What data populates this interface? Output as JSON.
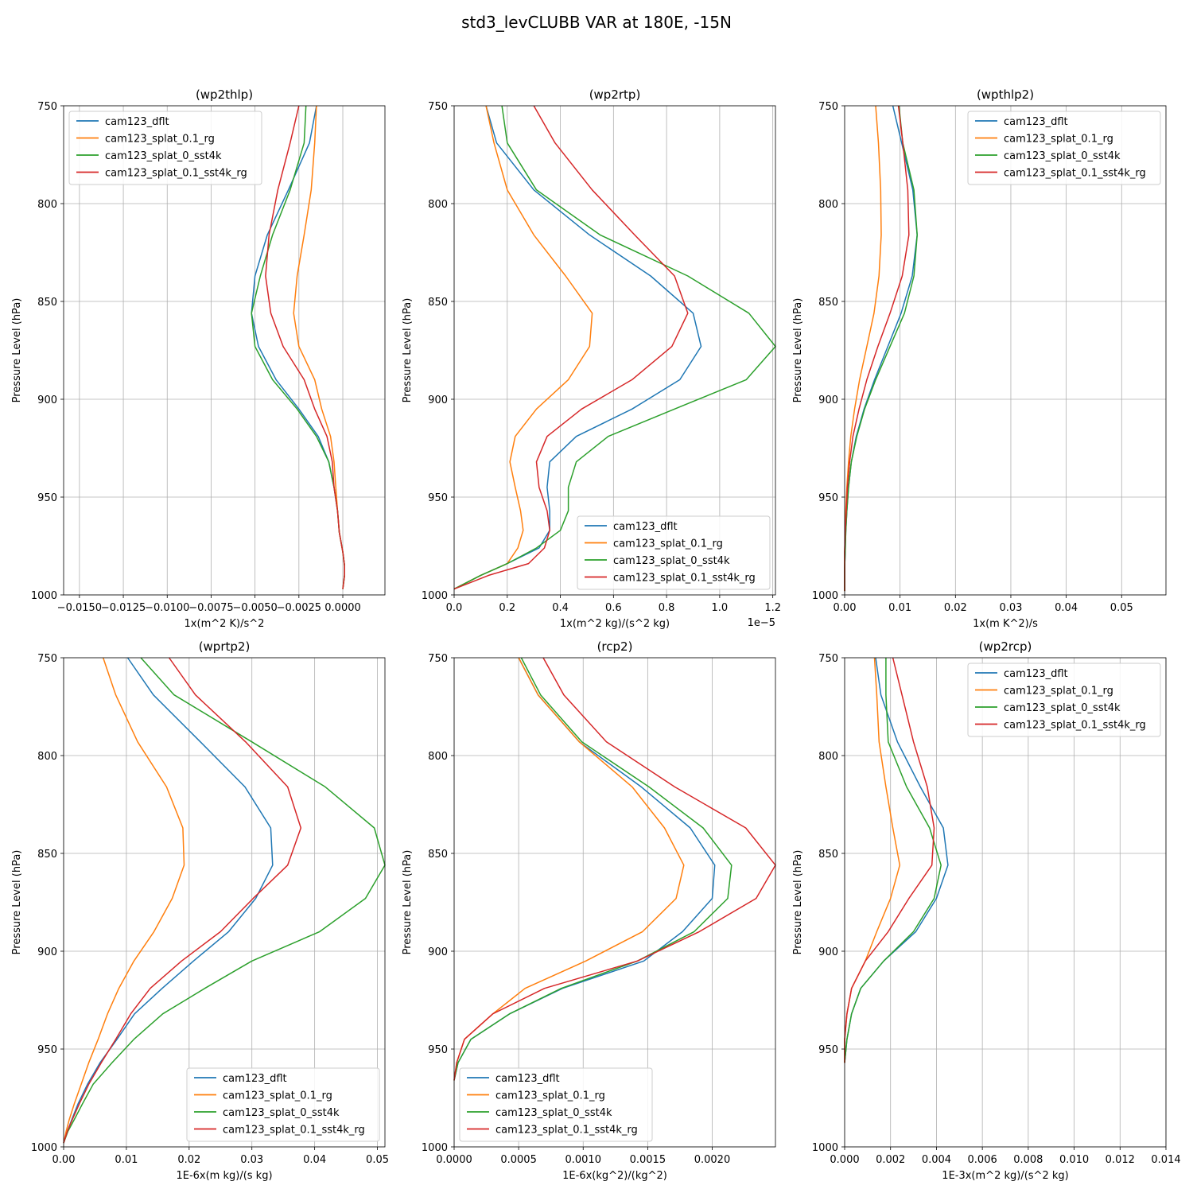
{
  "figure_title": "std3_levCLUBB VAR at 180E, -15N",
  "colors": {
    "cam123_dflt": "#1f77b4",
    "cam123_splat_0.1_rg": "#ff7f0e",
    "cam123_splat_0_sst4k": "#2ca02c",
    "cam123_splat_0.1_sst4k_rg": "#d62728"
  },
  "chart_data": [
    {
      "type": "line",
      "title": "(wp2thlp)",
      "xlabel": "1x(m^2 K)/s^2",
      "ylabel": "Pressure Level (hPa)",
      "xlim": [
        -0.0159,
        0.0024
      ],
      "ylim": [
        1000,
        750
      ],
      "xticks": [
        -0.015,
        -0.0125,
        -0.01,
        -0.0075,
        -0.005,
        -0.0025,
        0.0
      ],
      "xtick_labels": [
        "−0.0150",
        "−0.0125",
        "−0.0100",
        "−0.0075",
        "−0.0050",
        "−0.0025",
        "0.0000"
      ],
      "yticks": [
        750,
        800,
        850,
        900,
        950,
        1000
      ],
      "ytick_labels": [
        "750",
        "800",
        "850",
        "900",
        "950",
        "1000"
      ],
      "offset_label": "",
      "grid": true,
      "legend_loc": "upper-left",
      "y": [
        750,
        769,
        793,
        816,
        837,
        856,
        873,
        890,
        905,
        919,
        932,
        945,
        957,
        968,
        978,
        985,
        990,
        997
      ],
      "series": [
        {
          "name": "cam123_dflt",
          "values": [
            -0.0015,
            -0.0019,
            -0.0031,
            -0.0043,
            -0.005,
            -0.0052,
            -0.0048,
            -0.0038,
            -0.0025,
            -0.0014,
            -0.0008,
            -0.0005,
            -0.0003,
            -0.0002,
            0.0,
            0.0001,
            0.0001,
            0.0
          ]
        },
        {
          "name": "cam123_splat_0.1_rg",
          "values": [
            -0.0015,
            -0.0016,
            -0.0018,
            -0.0022,
            -0.0026,
            -0.0028,
            -0.0025,
            -0.0016,
            -0.0012,
            -0.0007,
            -0.0005,
            -0.0004,
            -0.0003,
            -0.0002,
            0.0,
            0.0001,
            0.0001,
            0.0
          ]
        },
        {
          "name": "cam123_splat_0_sst4k",
          "values": [
            -0.0021,
            -0.0022,
            -0.003,
            -0.004,
            -0.0047,
            -0.0052,
            -0.005,
            -0.004,
            -0.0026,
            -0.0015,
            -0.0008,
            -0.0005,
            -0.0003,
            -0.0002,
            0.0,
            0.0001,
            0.0001,
            0.0
          ]
        },
        {
          "name": "cam123_splat_0.1_sst4k_rg",
          "values": [
            -0.0025,
            -0.003,
            -0.0037,
            -0.0042,
            -0.0044,
            -0.0041,
            -0.0034,
            -0.0022,
            -0.0016,
            -0.0009,
            -0.0006,
            -0.0005,
            -0.0003,
            -0.0002,
            0.0,
            0.0001,
            0.0001,
            0.0
          ]
        }
      ]
    },
    {
      "type": "line",
      "title": "(wp2rtp)",
      "xlabel": "1x(m^2 kg)/(s^2 kg)",
      "ylabel": "Pressure Level (hPa)",
      "xlim": [
        0,
        1.21e-05
      ],
      "ylim": [
        1000,
        750
      ],
      "xticks": [
        0,
        2e-06,
        4e-06,
        6e-06,
        8e-06,
        1e-05,
        1.2e-05
      ],
      "xtick_labels": [
        "0.0",
        "0.2",
        "0.4",
        "0.6",
        "0.8",
        "1.0",
        "1.2"
      ],
      "yticks": [
        750,
        800,
        850,
        900,
        950,
        1000
      ],
      "ytick_labels": [
        "750",
        "800",
        "850",
        "900",
        "950",
        "1000"
      ],
      "offset_label": "1e−5",
      "grid": true,
      "legend_loc": "lower-right",
      "y": [
        750,
        769,
        793,
        816,
        837,
        856,
        873,
        890,
        905,
        919,
        932,
        945,
        957,
        967,
        976,
        984,
        990,
        997
      ],
      "series": [
        {
          "name": "cam123_dflt",
          "values": [
            1.2e-06,
            1.6e-06,
            3e-06,
            5.1e-06,
            7.4e-06,
            9e-06,
            9.3e-06,
            8.5e-06,
            6.7e-06,
            4.6e-06,
            3.6e-06,
            3.5e-06,
            3.6e-06,
            3.6e-06,
            3.2e-06,
            2e-06,
            1e-06,
            0.0
          ]
        },
        {
          "name": "cam123_splat_0.1_rg",
          "values": [
            1.2e-06,
            1.5e-06,
            2e-06,
            3e-06,
            4.2e-06,
            5.2e-06,
            5.1e-06,
            4.3e-06,
            3.1e-06,
            2.3e-06,
            2.1e-06,
            2.3e-06,
            2.5e-06,
            2.6e-06,
            2.4e-06,
            2e-06,
            1e-06,
            0.0
          ]
        },
        {
          "name": "cam123_splat_0_sst4k",
          "values": [
            1.8e-06,
            2e-06,
            3.1e-06,
            5.5e-06,
            8.8e-06,
            1.11e-05,
            1.21e-05,
            1.1e-05,
            8.3e-06,
            5.8e-06,
            4.6e-06,
            4.3e-06,
            4.3e-06,
            4e-06,
            3.1e-06,
            2e-06,
            1e-06,
            0.0
          ]
        },
        {
          "name": "cam123_splat_0.1_sst4k_rg",
          "values": [
            3e-06,
            3.8e-06,
            5.2e-06,
            6.8e-06,
            8.3e-06,
            8.8e-06,
            8.2e-06,
            6.7e-06,
            4.8e-06,
            3.5e-06,
            3.1e-06,
            3.2e-06,
            3.5e-06,
            3.6e-06,
            3.4e-06,
            2.8e-06,
            1.3e-06,
            0.0
          ]
        }
      ]
    },
    {
      "type": "line",
      "title": "(wpthlp2)",
      "xlabel": "1x(m K^2)/s",
      "ylabel": "Pressure Level (hPa)",
      "xlim": [
        0,
        0.058
      ],
      "ylim": [
        1000,
        750
      ],
      "xticks": [
        0,
        0.01,
        0.02,
        0.03,
        0.04,
        0.05
      ],
      "xtick_labels": [
        "0.00",
        "0.01",
        "0.02",
        "0.03",
        "0.04",
        "0.05"
      ],
      "yticks": [
        750,
        800,
        850,
        900,
        950,
        1000
      ],
      "ytick_labels": [
        "750",
        "800",
        "850",
        "900",
        "950",
        "1000"
      ],
      "offset_label": "",
      "grid": true,
      "legend_loc": "upper-right",
      "y": [
        750,
        769,
        793,
        816,
        837,
        856,
        873,
        890,
        905,
        919,
        932,
        945,
        957,
        968,
        978,
        986,
        992,
        998
      ],
      "series": [
        {
          "name": "cam123_dflt",
          "values": [
            0.0087,
            0.0103,
            0.0123,
            0.0131,
            0.0122,
            0.0102,
            0.0078,
            0.0054,
            0.0035,
            0.0021,
            0.0012,
            0.0007,
            0.0004,
            0.0002,
            0.0001,
            0.0,
            0.0,
            0.0
          ]
        },
        {
          "name": "cam123_splat_0.1_rg",
          "values": [
            0.0056,
            0.0061,
            0.0065,
            0.0066,
            0.0062,
            0.0053,
            0.004,
            0.0027,
            0.0018,
            0.0011,
            0.0007,
            0.0004,
            0.0002,
            0.0001,
            0.0,
            0.0,
            0.0,
            0.0
          ]
        },
        {
          "name": "cam123_splat_0_sst4k",
          "values": [
            0.0098,
            0.0105,
            0.0125,
            0.0131,
            0.0125,
            0.0108,
            0.0082,
            0.0056,
            0.0036,
            0.0022,
            0.0012,
            0.0007,
            0.0004,
            0.0002,
            0.0001,
            0.0,
            0.0,
            0.0
          ]
        },
        {
          "name": "cam123_splat_0.1_sst4k_rg",
          "values": [
            0.0097,
            0.0105,
            0.0114,
            0.0116,
            0.0104,
            0.0082,
            0.006,
            0.004,
            0.0026,
            0.0015,
            0.0009,
            0.0005,
            0.0003,
            0.0001,
            0.0,
            0.0,
            0.0,
            0.0
          ]
        }
      ]
    },
    {
      "type": "line",
      "title": "(wprtp2)",
      "xlabel": "1E-6x(m kg)/(s kg)",
      "ylabel": "Pressure Level (hPa)",
      "xlim": [
        0,
        0.0512
      ],
      "ylim": [
        1000,
        750
      ],
      "xticks": [
        0,
        0.01,
        0.02,
        0.03,
        0.04,
        0.05
      ],
      "xtick_labels": [
        "0.00",
        "0.01",
        "0.02",
        "0.03",
        "0.04",
        "0.05"
      ],
      "yticks": [
        750,
        800,
        850,
        900,
        950,
        1000
      ],
      "ytick_labels": [
        "750",
        "800",
        "850",
        "900",
        "950",
        "1000"
      ],
      "offset_label": "",
      "grid": true,
      "legend_loc": "lower-right",
      "y": [
        750,
        769,
        793,
        816,
        837,
        856,
        873,
        890,
        905,
        919,
        932,
        945,
        957,
        968,
        978,
        986,
        992,
        998
      ],
      "series": [
        {
          "name": "cam123_dflt",
          "values": [
            0.0102,
            0.0143,
            0.0218,
            0.0289,
            0.033,
            0.0333,
            0.0306,
            0.0263,
            0.0207,
            0.0157,
            0.0113,
            0.0085,
            0.0058,
            0.0038,
            0.0023,
            0.0013,
            0.0006,
            0.0
          ]
        },
        {
          "name": "cam123_splat_0.1_rg",
          "values": [
            0.0063,
            0.0083,
            0.0118,
            0.0164,
            0.019,
            0.0192,
            0.0173,
            0.0144,
            0.0112,
            0.0088,
            0.007,
            0.0055,
            0.004,
            0.0028,
            0.0017,
            0.0009,
            0.0004,
            0.0
          ]
        },
        {
          "name": "cam123_splat_0_sst4k",
          "values": [
            0.0123,
            0.0176,
            0.03,
            0.0417,
            0.0495,
            0.0512,
            0.0481,
            0.0408,
            0.03,
            0.0225,
            0.0158,
            0.0112,
            0.0077,
            0.0047,
            0.003,
            0.0017,
            0.0007,
            0.0
          ]
        },
        {
          "name": "cam123_splat_0.1_sst4k_rg",
          "values": [
            0.0168,
            0.021,
            0.029,
            0.0357,
            0.0378,
            0.0357,
            0.0302,
            0.025,
            0.0188,
            0.0138,
            0.0107,
            0.0083,
            0.006,
            0.004,
            0.0025,
            0.0014,
            0.0006,
            0.0
          ]
        }
      ]
    },
    {
      "type": "line",
      "title": "(rcp2)",
      "xlabel": "1E-6x(kg^2)/(kg^2)",
      "ylabel": "Pressure Level (hPa)",
      "xlim": [
        0,
        0.00249
      ],
      "ylim": [
        1000,
        750
      ],
      "xticks": [
        0,
        0.0005,
        0.001,
        0.0015,
        0.002
      ],
      "xtick_labels": [
        "0.0000",
        "0.0005",
        "0.0010",
        "0.0015",
        "0.0020"
      ],
      "yticks": [
        750,
        800,
        850,
        900,
        950,
        1000
      ],
      "ytick_labels": [
        "750",
        "800",
        "850",
        "900",
        "950",
        "1000"
      ],
      "offset_label": "",
      "grid": true,
      "legend_loc": "lower-left",
      "y": [
        750,
        769,
        793,
        816,
        837,
        856,
        873,
        890,
        905,
        919,
        932,
        945,
        957,
        966
      ],
      "series": [
        {
          "name": "cam123_dflt",
          "values": [
            0.0005,
            0.00065,
            0.00097,
            0.00145,
            0.00183,
            0.00202,
            0.002,
            0.00177,
            0.00147,
            0.00084,
            0.00043,
            0.00013,
            3e-05,
            0.0
          ]
        },
        {
          "name": "cam123_splat_0.1_rg",
          "values": [
            0.0005,
            0.00065,
            0.00097,
            0.00138,
            0.00163,
            0.00178,
            0.00172,
            0.00146,
            0.00102,
            0.00055,
            0.0003,
            8e-05,
            2e-05,
            0.0
          ]
        },
        {
          "name": "cam123_splat_0_sst4k",
          "values": [
            0.00052,
            0.00067,
            0.00099,
            0.00151,
            0.00193,
            0.00215,
            0.00212,
            0.00186,
            0.00142,
            0.00083,
            0.00043,
            0.00013,
            3e-05,
            0.0
          ]
        },
        {
          "name": "cam123_splat_0.1_sst4k_rg",
          "values": [
            0.00069,
            0.00085,
            0.00118,
            0.00171,
            0.00226,
            0.00249,
            0.00234,
            0.0019,
            0.00142,
            0.0007,
            0.0003,
            8e-05,
            2e-05,
            0.0
          ]
        }
      ]
    },
    {
      "type": "line",
      "title": "(wp2rcp)",
      "xlabel": "1E-3x(m^2 kg)/(s^2 kg)",
      "ylabel": "Pressure Level (hPa)",
      "xlim": [
        0,
        0.014
      ],
      "ylim": [
        1000,
        750
      ],
      "xticks": [
        0,
        0.002,
        0.004,
        0.006,
        0.008,
        0.01,
        0.012,
        0.014
      ],
      "xtick_labels": [
        "0.000",
        "0.002",
        "0.004",
        "0.006",
        "0.008",
        "0.010",
        "0.012",
        "0.014"
      ],
      "yticks": [
        750,
        800,
        850,
        900,
        950,
        1000
      ],
      "ytick_labels": [
        "750",
        "800",
        "850",
        "900",
        "950",
        "1000"
      ],
      "offset_label": "",
      "grid": true,
      "legend_loc": "upper-right",
      "y": [
        750,
        769,
        793,
        816,
        837,
        856,
        873,
        890,
        905,
        919,
        932,
        945,
        957
      ],
      "series": [
        {
          "name": "cam123_dflt",
          "values": [
            0.00135,
            0.00158,
            0.0023,
            0.0033,
            0.0043,
            0.0045,
            0.004,
            0.0031,
            0.0017,
            0.0007,
            0.0003,
            0.0001,
            0.0
          ]
        },
        {
          "name": "cam123_splat_0.1_rg",
          "values": [
            0.0013,
            0.0014,
            0.0015,
            0.0018,
            0.0021,
            0.0024,
            0.002,
            0.0014,
            0.0009,
            0.0003,
            0.0001,
            0.0,
            0.0
          ]
        },
        {
          "name": "cam123_splat_0_sst4k",
          "values": [
            0.0018,
            0.0018,
            0.0019,
            0.0027,
            0.0037,
            0.0042,
            0.0039,
            0.003,
            0.0017,
            0.0007,
            0.0003,
            0.0001,
            0.0
          ]
        },
        {
          "name": "cam123_splat_0.1_sst4k_rg",
          "values": [
            0.0021,
            0.0025,
            0.003,
            0.0036,
            0.0039,
            0.0038,
            0.0028,
            0.0019,
            0.0009,
            0.0003,
            0.0001,
            0.0,
            0.0
          ]
        }
      ]
    }
  ]
}
